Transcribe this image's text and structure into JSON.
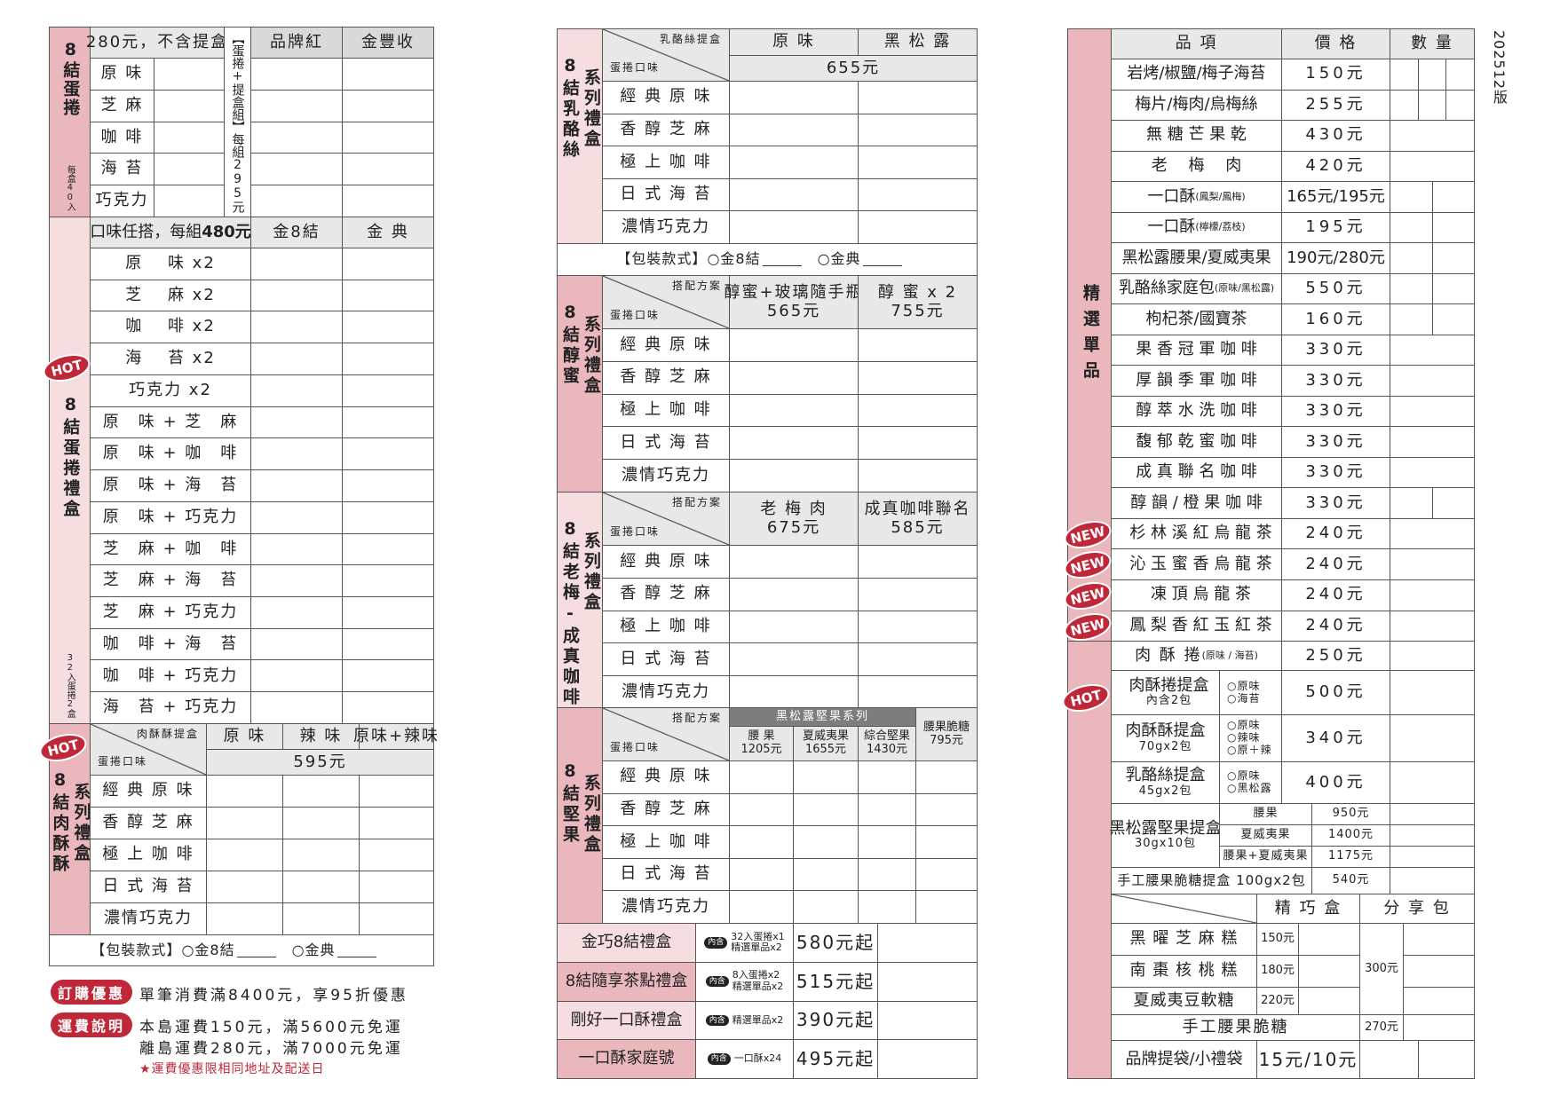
{
  "version": "202512版",
  "colors": {
    "pink_dark": "#eab7bc",
    "pink_light": "#f6dde0",
    "header_gray": "#e8e8e8",
    "badge_red": "#c0283a"
  },
  "gift_flavors": [
    "經 典 原 味",
    "香 醇 芝 麻",
    "極 上 咖 啡",
    "日 式 海 苔",
    "濃情巧克力"
  ],
  "package": {
    "label": "【包裝款式】",
    "options": [
      "○金8結",
      "○金典"
    ]
  },
  "left": {
    "eggroll": {
      "side": "8結蛋捲",
      "side_note": "每盒40入",
      "price_header": "280元，不含提盒",
      "set_label": "【蛋捲+提盒組】",
      "set_price": "每組295元",
      "columns": [
        "品牌紅",
        "金豐收"
      ],
      "flavors": [
        "原 味",
        "芝 麻",
        "咖 啡",
        "海 苔",
        "巧克力"
      ]
    },
    "giftbox": {
      "badge": "HOT",
      "side": "8結蛋捲禮盒",
      "side_note": "32入蛋捲2盒",
      "header": "口味任搭，每組",
      "header_price": "480元",
      "columns": [
        "金8結",
        "金 典"
      ],
      "rows": [
        "原　 味 x2",
        "芝　 麻 x2",
        "咖　 啡 x2",
        "海　 苔 x2",
        "巧克力 x2",
        "原　味 + 芝　麻",
        "原　味 + 咖　啡",
        "原　味 + 海　苔",
        "原　味 + 巧克力",
        "芝　麻 + 咖　啡",
        "芝　麻 + 海　苔",
        "芝　麻 + 巧克力",
        "咖　啡 + 海　苔",
        "咖　啡 + 巧克力",
        "海　苔 + 巧克力"
      ]
    },
    "porkfloss": {
      "badge": "HOT",
      "side": "8結肉酥酥",
      "series": "系列禮盒",
      "corner_top": "肉酥酥提盒",
      "corner_bottom": "蛋捲口味",
      "columns": [
        "原 味",
        "辣 味",
        "原味+辣味"
      ],
      "price": "595元"
    },
    "promos": {
      "discount": {
        "label": "訂購優惠",
        "text": "單筆消費滿8400元，享95折優惠"
      },
      "shipping": {
        "label": "運費說明",
        "lines": [
          "本島運費150元，滿5600元免運",
          "離島運費280元，滿7000元免運"
        ],
        "note": "★運費優惠限相同地址及配送日"
      }
    }
  },
  "middle": {
    "cheese": {
      "side": "8結乳酪絲",
      "series": "系列禮盒",
      "corner_top": "乳酪絲提盒",
      "corner_bottom": "蛋捲口味",
      "columns": [
        "原 味",
        "黑 松 露"
      ],
      "price": "655元"
    },
    "honey": {
      "side": "8結醇蜜",
      "series": "系列禮盒",
      "corner_top": "搭配方案",
      "corner_bottom": "蛋捲口味",
      "columns": [
        {
          "name": "醇蜜+玻璃隨手瓶",
          "price": "565元"
        },
        {
          "name": "醇 蜜 x 2",
          "price": "755元"
        }
      ]
    },
    "plum": {
      "side": "8結老梅-成真咖啡",
      "series": "系列禮盒",
      "corner_top": "搭配方案",
      "corner_bottom": "蛋捲口味",
      "columns": [
        {
          "name": "老 梅 肉",
          "price": "675元"
        },
        {
          "name": "成真咖啡聯名",
          "price": "585元"
        }
      ]
    },
    "nuts": {
      "side": "8結堅果",
      "series": "系列禮盒",
      "corner_top": "搭配方案",
      "corner_bottom": "蛋捲口味",
      "group": "黑松露堅果系列",
      "columns": [
        {
          "name": "腰 果",
          "price": "1205元"
        },
        {
          "name": "夏威夷果",
          "price": "1655元"
        },
        {
          "name": "綜合堅果",
          "price": "1430元"
        },
        {
          "name": "腰果脆糖",
          "price": "795元"
        }
      ]
    },
    "combos": [
      {
        "name": "金巧8結禮盒",
        "tag": "內含",
        "contents": [
          "32入蛋捲x1",
          "精選單品x2"
        ],
        "price": "580元起"
      },
      {
        "name": "8結隨享茶點禮盒",
        "tag": "內含",
        "contents": [
          "8入蛋捲x2",
          "精選單品x2"
        ],
        "price": "515元起"
      },
      {
        "name": "剛好一口酥禮盒",
        "tag": "內含",
        "contents": [
          "精選單品x2"
        ],
        "price": "390元起"
      },
      {
        "name": "一口酥家庭號",
        "tag": "內含",
        "contents": [
          "一口酥x24"
        ],
        "price": "495元起"
      }
    ]
  },
  "right": {
    "side": "精選單品",
    "headers": [
      "品 項",
      "價 格",
      "數 量"
    ],
    "items": [
      {
        "name": "岩烤/椒鹽/梅子海苔",
        "price": "150元"
      },
      {
        "name": "梅片/梅肉/烏梅絲",
        "price": "255元"
      },
      {
        "name": "無 糖 芒 果 乾",
        "price": "430元"
      },
      {
        "name": "老　 梅　 肉",
        "price": "420元"
      },
      {
        "name": "一口酥",
        "note": "(鳳梨/鳳梅)",
        "price": "165元/195元"
      },
      {
        "name": "一口酥",
        "note": "(檸檬/荔枝)",
        "price": "195元"
      },
      {
        "name": "黑松露腰果/夏威夷果",
        "price": "190元/280元"
      },
      {
        "name": "乳酪絲家庭包",
        "note": "(原味/黑松露)",
        "price": "550元"
      },
      {
        "name": "枸杞茶/國寶茶",
        "price": "160元"
      },
      {
        "name": "果 香 冠 軍 咖 啡",
        "price": "330元"
      },
      {
        "name": "厚 韻 季 軍 咖 啡",
        "price": "330元"
      },
      {
        "name": "醇 萃 水 洗 咖 啡",
        "price": "330元"
      },
      {
        "name": "馥 郁 乾 蜜 咖 啡",
        "price": "330元"
      },
      {
        "name": "成 真 聯 名 咖 啡",
        "price": "330元"
      },
      {
        "name": "醇 韻 / 橙 果 咖 啡",
        "price": "330元"
      },
      {
        "name": "杉 林 溪 紅 烏 龍 茶",
        "price": "240元",
        "badge": "NEW"
      },
      {
        "name": "沁 玉 蜜 香 烏 龍 茶",
        "price": "240元",
        "badge": "NEW"
      },
      {
        "name": "凍 頂 烏 龍 茶",
        "price": "240元",
        "badge": "NEW"
      },
      {
        "name": "鳳 梨 香 紅 玉 紅 茶",
        "price": "240元",
        "badge": "NEW"
      }
    ],
    "hot_badge": "HOT",
    "roll": {
      "name": "肉 酥 捲",
      "note": "(原味 / 海苔)",
      "price": "250元"
    },
    "boxes": [
      {
        "name": "肉酥捲提盒",
        "sub": "內含2包",
        "options": [
          "○原味",
          "○海苔"
        ],
        "price": "500元"
      },
      {
        "name": "肉酥酥提盒",
        "sub": "70gx2包",
        "options": [
          "○原味",
          "○辣味",
          "○原＋辣"
        ],
        "price": "340元"
      },
      {
        "name": "乳酪絲提盒",
        "sub": "45gx2包",
        "options": [
          "○原味",
          "○黑松露"
        ],
        "price": "400元"
      }
    ],
    "nutbox": {
      "name": "黑松露堅果提盒",
      "sub": "30gx10包",
      "variants": [
        {
          "name": "腰果",
          "price": "950元"
        },
        {
          "name": "夏威夷果",
          "price": "1400元"
        },
        {
          "name": "腰果+夏威夷果",
          "price": "1175元"
        }
      ]
    },
    "brittle_box": {
      "name": "手工腰果脆糖提盒 100gx2包",
      "price": "540元"
    },
    "cakes": {
      "columns": [
        "精 巧 盒",
        "分 享 包"
      ],
      "rows": [
        {
          "name": "黑 曜 芝 麻 糕",
          "price": "150元"
        },
        {
          "name": "南 棗 核 桃 糕",
          "price": "180元"
        },
        {
          "name": "夏威夷豆軟糖",
          "price": "220元"
        }
      ],
      "share_price": "300元",
      "brittle": {
        "name": "手工腰果脆糖",
        "price": "270元"
      },
      "bag": {
        "name": "品牌提袋/小禮袋",
        "price": "15元/10元"
      }
    }
  }
}
